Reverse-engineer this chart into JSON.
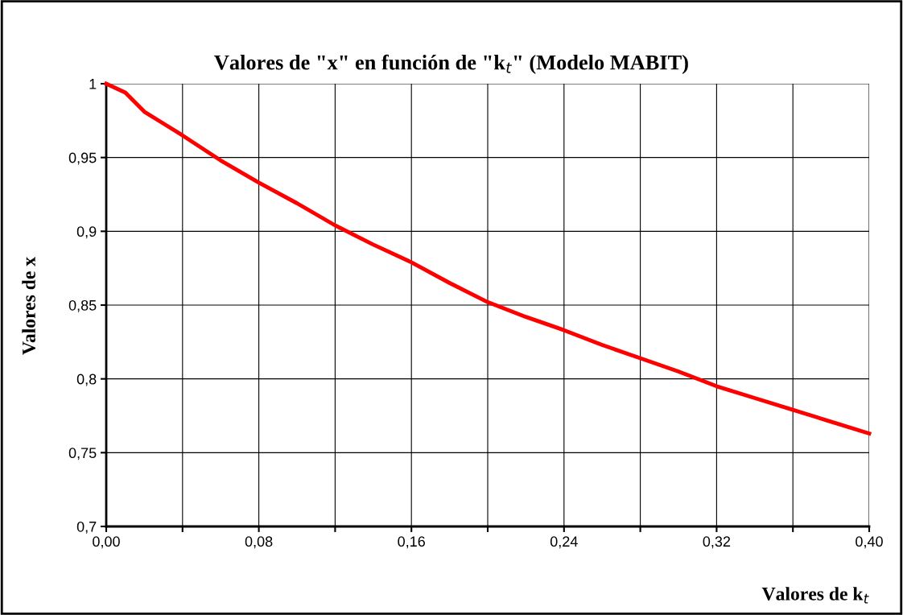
{
  "chart_data": {
    "type": "line",
    "title": "Valores de \"x\" en función de \"k$_{t}$\" (Modelo MABIT)",
    "xlabel": "Valores de k$_{t}$",
    "ylabel": "Valores de x",
    "x": [
      0,
      0.01,
      0.02,
      0.03,
      0.04,
      0.06,
      0.08,
      0.1,
      0.12,
      0.14,
      0.16,
      0.18,
      0.2,
      0.22,
      0.24,
      0.26,
      0.28,
      0.3,
      0.32,
      0.34,
      0.36,
      0.38,
      0.4
    ],
    "series": [
      {
        "color": "#ff0000",
        "values": [
          1,
          0.994,
          0.981,
          0.973,
          0.965,
          0.948,
          0.933,
          0.919,
          0.904,
          0.891,
          0.879,
          0.865,
          0.852,
          0.842,
          0.833,
          0.823,
          0.814,
          0.805,
          0.795,
          0.787,
          0.779,
          0.771,
          0.763
        ]
      }
    ],
    "xlim": [
      0,
      0.4
    ],
    "ylim": [
      0.7,
      1
    ],
    "xticks": [
      {
        "value": 0,
        "label": "0,00"
      },
      {
        "value": 0.04,
        "label": null
      },
      {
        "value": 0.08,
        "label": "0,08"
      },
      {
        "value": 0.12,
        "label": null
      },
      {
        "value": 0.16,
        "label": "0,16"
      },
      {
        "value": 0.2,
        "label": null
      },
      {
        "value": 0.24,
        "label": "0,24"
      },
      {
        "value": 0.28,
        "label": null
      },
      {
        "value": 0.32,
        "label": "0,32"
      },
      {
        "value": 0.36,
        "label": null
      },
      {
        "value": 0.4,
        "label": "0,40"
      }
    ],
    "yticks": [
      {
        "value": 0.7,
        "label": "0,7"
      },
      {
        "value": 0.75,
        "label": "0,75"
      },
      {
        "value": 0.8,
        "label": "0,8"
      },
      {
        "value": 0.85,
        "label": "0,85"
      },
      {
        "value": 0.9,
        "label": "0,9"
      },
      {
        "value": 0.95,
        "label": "0,95"
      },
      1
    ],
    "grid": true,
    "legend": false,
    "marker": "none",
    "line_style": "solid"
  }
}
